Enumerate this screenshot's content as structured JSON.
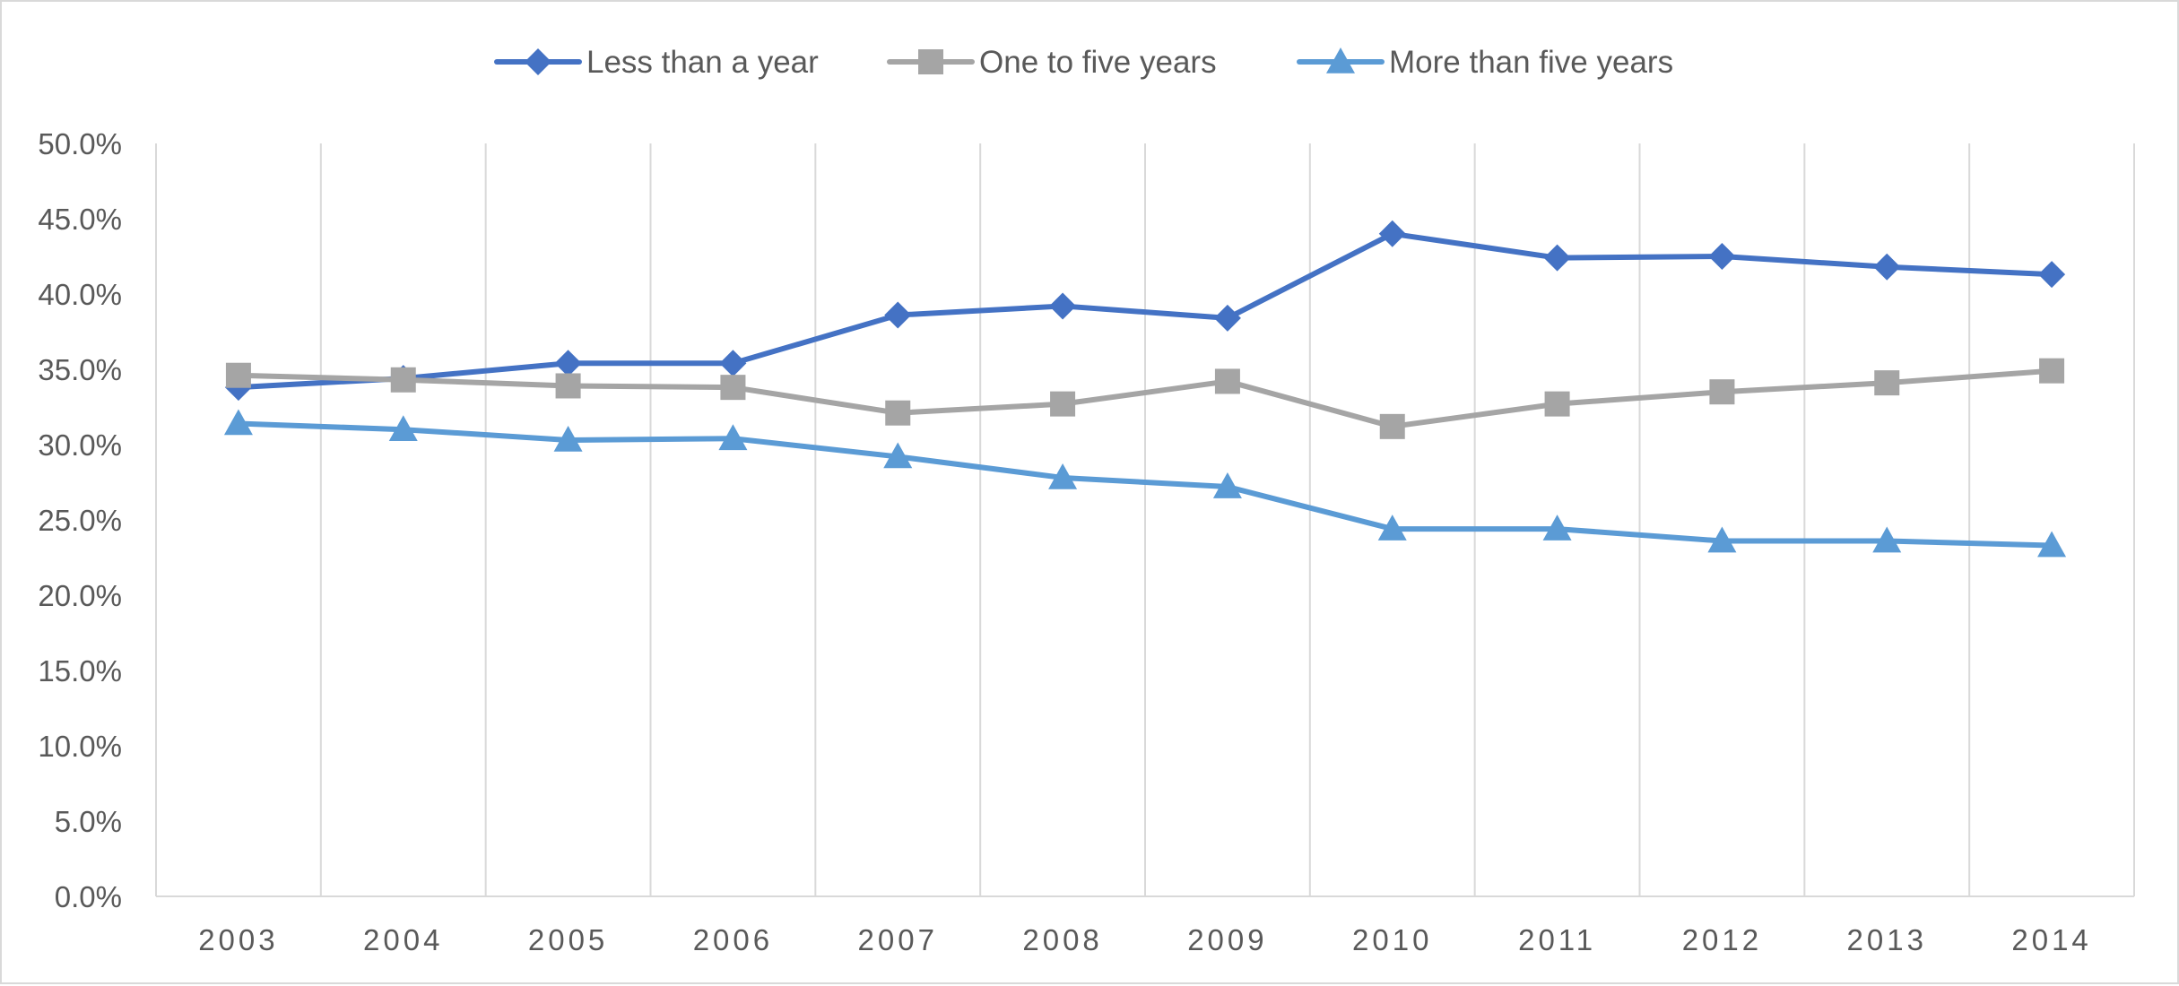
{
  "chart_data": {
    "type": "line",
    "title": "",
    "xlabel": "",
    "ylabel": "",
    "x": [
      "2003",
      "2004",
      "2005",
      "2006",
      "2007",
      "2008",
      "2009",
      "2010",
      "2011",
      "2012",
      "2013",
      "2014"
    ],
    "ylim": [
      0,
      50
    ],
    "yticks": [
      "0.0%",
      "5.0%",
      "10.0%",
      "15.0%",
      "20.0%",
      "25.0%",
      "30.0%",
      "35.0%",
      "40.0%",
      "45.0%",
      "50.0%"
    ],
    "grid": {
      "vertical": true,
      "horizontal": false
    },
    "legend_position": "top",
    "series": [
      {
        "name": "Less than a year",
        "marker": "diamond",
        "color": "#4472C4",
        "values": [
          33.8,
          34.4,
          35.4,
          35.4,
          38.6,
          39.2,
          38.4,
          44.0,
          42.4,
          42.5,
          41.8,
          41.3
        ]
      },
      {
        "name": "One to five years",
        "marker": "square",
        "color": "#A5A5A5",
        "values": [
          34.6,
          34.3,
          33.9,
          33.8,
          32.1,
          32.7,
          34.2,
          31.2,
          32.7,
          33.5,
          34.1,
          34.9
        ]
      },
      {
        "name": "More than five years",
        "marker": "triangle",
        "color": "#5B9BD5",
        "values": [
          31.4,
          31.0,
          30.3,
          30.4,
          29.2,
          27.8,
          27.2,
          24.4,
          24.4,
          23.6,
          23.6,
          23.3
        ]
      }
    ]
  }
}
